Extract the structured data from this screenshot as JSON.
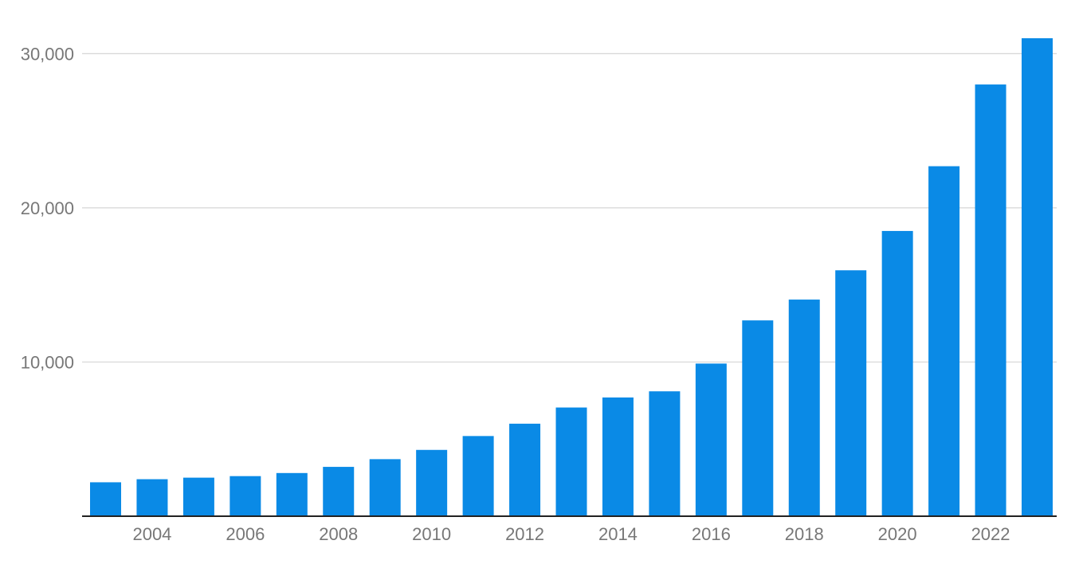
{
  "chart_data": {
    "type": "bar",
    "title": "",
    "xlabel": "",
    "ylabel": "",
    "categories": [
      "2003",
      "2004",
      "2005",
      "2006",
      "2007",
      "2008",
      "2009",
      "2010",
      "2011",
      "2012",
      "2013",
      "2014",
      "2015",
      "2016",
      "2017",
      "2018",
      "2019",
      "2020",
      "2021",
      "2022",
      "2023"
    ],
    "values": [
      2200,
      2400,
      2500,
      2600,
      2800,
      3200,
      3700,
      4300,
      5200,
      6000,
      7050,
      7700,
      8100,
      9900,
      12700,
      14050,
      15950,
      18500,
      22700,
      28000,
      31000
    ],
    "x_tick_labels": [
      "2004",
      "2006",
      "2008",
      "2010",
      "2012",
      "2014",
      "2016",
      "2018",
      "2020",
      "2022"
    ],
    "y_ticks": [
      10000,
      20000,
      30000
    ],
    "y_tick_labels": [
      "10,000",
      "20,000",
      "30,000"
    ],
    "ylim": [
      0,
      31000
    ],
    "grid": true,
    "bar_color": "#0a8ae6"
  }
}
